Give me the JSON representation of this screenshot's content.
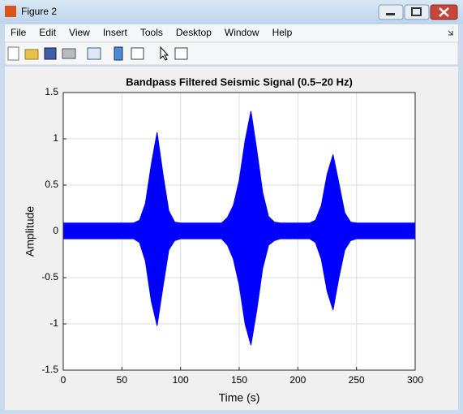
{
  "window": {
    "title": "Figure 2",
    "menu": [
      "File",
      "Edit",
      "View",
      "Insert",
      "Tools",
      "Desktop",
      "Window",
      "Help"
    ]
  },
  "chart_data": {
    "type": "area",
    "title": "Bandpass Filtered Seismic Signal (0.5–20 Hz)",
    "xlabel": "Time (s)",
    "ylabel": "Amplitude",
    "color": "#0000ff",
    "grid": true,
    "xlim": [
      0,
      300
    ],
    "xticks": [
      0,
      50,
      100,
      150,
      200,
      250,
      300
    ],
    "ylim": [
      -1.5,
      1.5
    ],
    "yticks": [
      1.5,
      1,
      0.5,
      0,
      -0.5,
      -1,
      -1.5
    ],
    "x": [
      0,
      5,
      10,
      15,
      20,
      25,
      30,
      35,
      40,
      45,
      50,
      55,
      60,
      65,
      70,
      75,
      80,
      85,
      90,
      95,
      100,
      105,
      110,
      115,
      120,
      125,
      130,
      135,
      140,
      145,
      150,
      155,
      160,
      165,
      170,
      175,
      180,
      185,
      190,
      195,
      200,
      205,
      210,
      215,
      220,
      225,
      230,
      235,
      240,
      245,
      250,
      255,
      260,
      265,
      270,
      275,
      280,
      285,
      290,
      295,
      300
    ],
    "upper": [
      0.09,
      0.09,
      0.09,
      0.09,
      0.09,
      0.09,
      0.09,
      0.09,
      0.09,
      0.09,
      0.09,
      0.09,
      0.09,
      0.12,
      0.3,
      0.72,
      1.07,
      0.62,
      0.22,
      0.1,
      0.09,
      0.09,
      0.09,
      0.09,
      0.09,
      0.09,
      0.09,
      0.09,
      0.15,
      0.28,
      0.55,
      0.98,
      1.3,
      0.88,
      0.42,
      0.16,
      0.1,
      0.09,
      0.09,
      0.09,
      0.09,
      0.09,
      0.09,
      0.12,
      0.28,
      0.62,
      0.83,
      0.52,
      0.2,
      0.1,
      0.09,
      0.09,
      0.09,
      0.09,
      0.09,
      0.09,
      0.09,
      0.09,
      0.09,
      0.09,
      0.09
    ],
    "lower": [
      -0.08,
      -0.08,
      -0.08,
      -0.08,
      -0.08,
      -0.08,
      -0.08,
      -0.08,
      -0.08,
      -0.08,
      -0.08,
      -0.08,
      -0.08,
      -0.12,
      -0.32,
      -0.75,
      -1.02,
      -0.6,
      -0.2,
      -0.1,
      -0.08,
      -0.08,
      -0.08,
      -0.08,
      -0.08,
      -0.08,
      -0.08,
      -0.08,
      -0.15,
      -0.3,
      -0.58,
      -1.0,
      -1.23,
      -0.85,
      -0.4,
      -0.15,
      -0.1,
      -0.08,
      -0.08,
      -0.08,
      -0.08,
      -0.08,
      -0.08,
      -0.12,
      -0.3,
      -0.65,
      -0.85,
      -0.5,
      -0.2,
      -0.1,
      -0.08,
      -0.08,
      -0.08,
      -0.08,
      -0.08,
      -0.08,
      -0.08,
      -0.08,
      -0.08,
      -0.08,
      -0.08
    ]
  }
}
